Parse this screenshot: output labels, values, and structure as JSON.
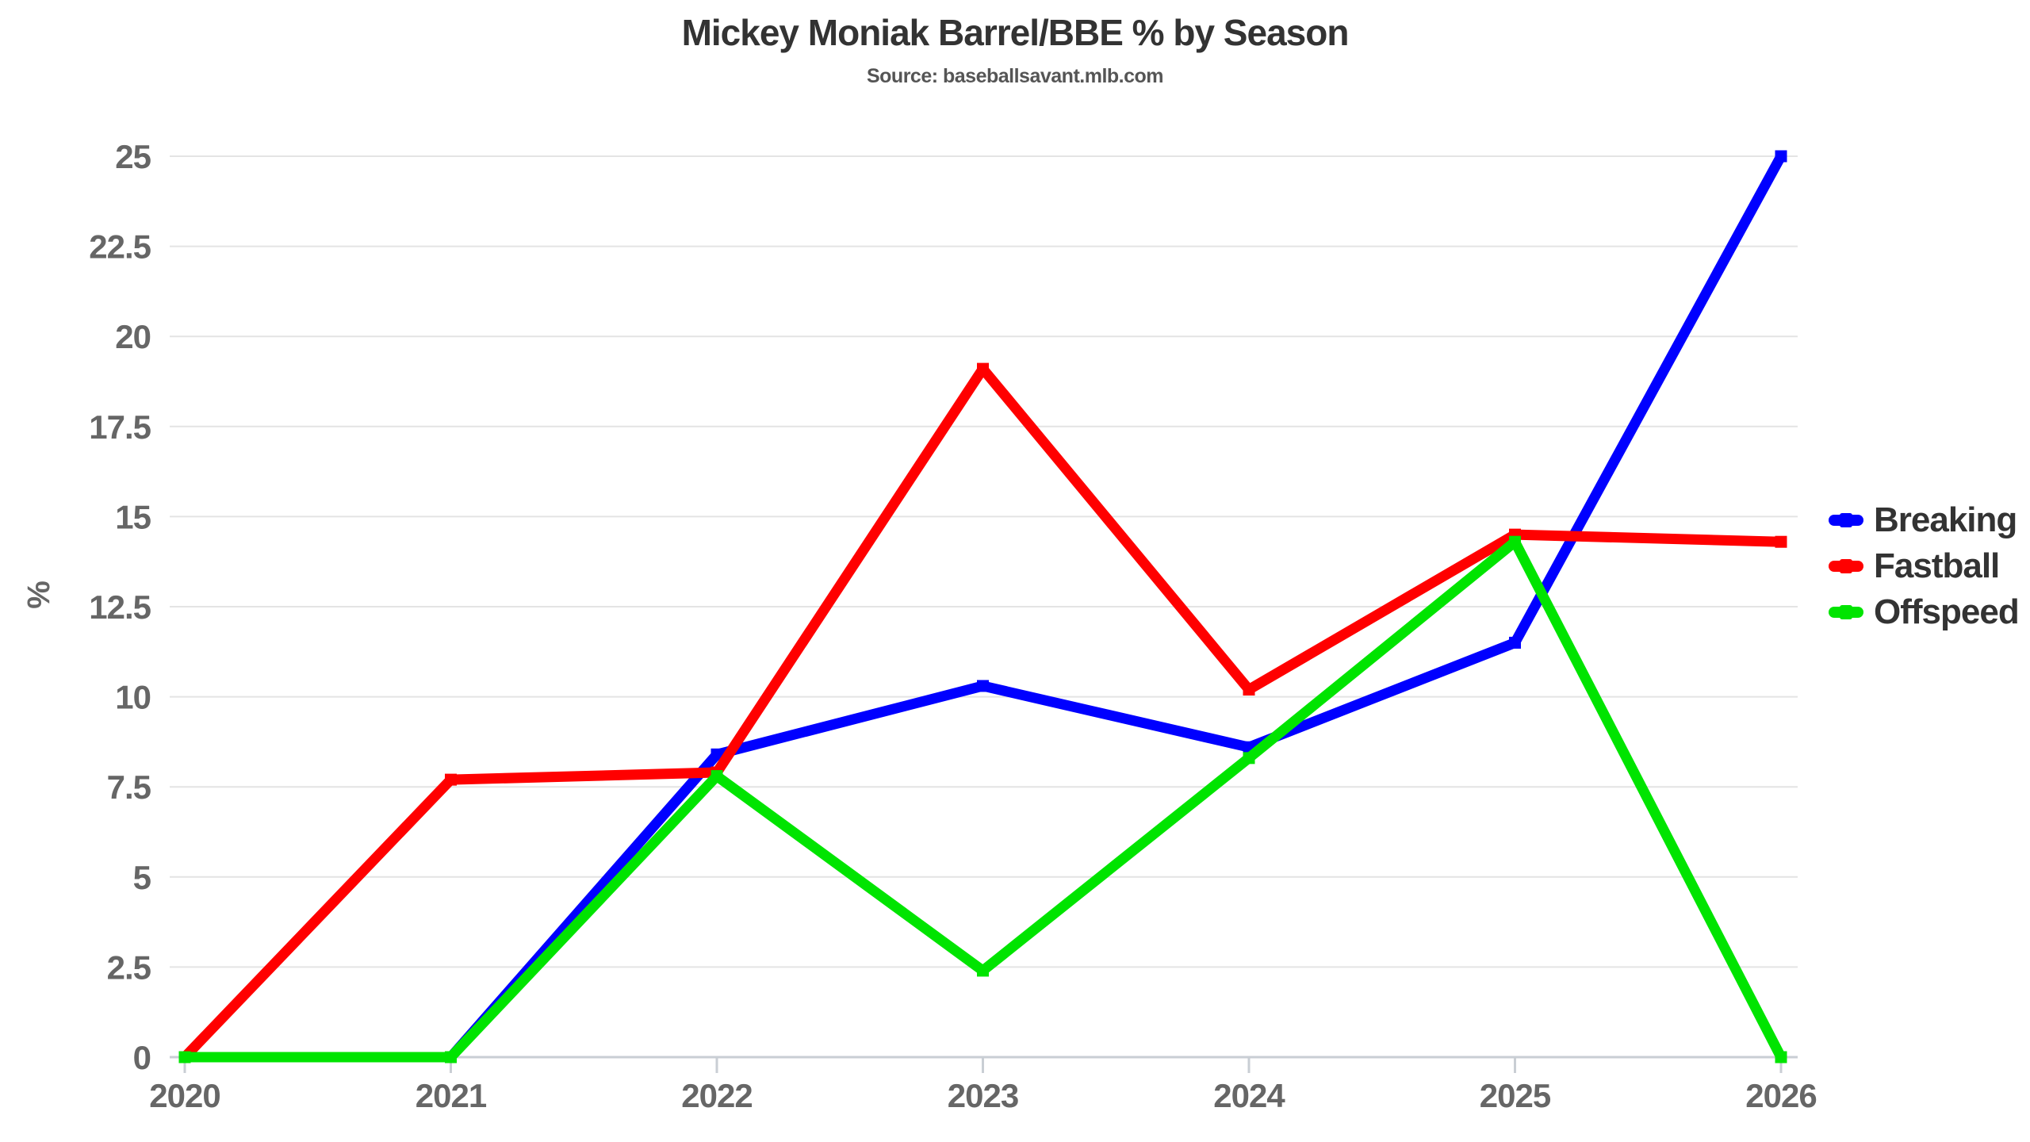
{
  "title": "Mickey Moniak Barrel/BBE % by Season",
  "subtitle": "Source: baseballsavant.mlb.com",
  "chart_data": {
    "type": "line",
    "x": [
      2020,
      2021,
      2022,
      2023,
      2024,
      2025,
      2026
    ],
    "series": [
      {
        "name": "Breaking",
        "color": "#0000ff",
        "values": [
          0,
          0,
          8.4,
          10.3,
          8.6,
          11.5,
          25
        ]
      },
      {
        "name": "Fastball",
        "color": "#ff0000",
        "values": [
          0,
          7.7,
          7.9,
          19.1,
          10.2,
          14.5,
          14.3
        ]
      },
      {
        "name": "Offspeed",
        "color": "#00e400",
        "values": [
          0,
          0,
          7.8,
          2.4,
          8.3,
          14.3,
          0
        ]
      }
    ],
    "xlabel": "",
    "ylabel": "%",
    "ylim": [
      0,
      25
    ],
    "ytick_step": 2.5,
    "grid": true,
    "legend_position": "right",
    "marker": "square"
  },
  "styles": {
    "gridline_color": "#e4e4e4",
    "axisline_color": "#c9ced4",
    "tick_label_color": "#666666",
    "title_color": "#333333",
    "subtitle_color": "#555555",
    "legend_text_color": "#333333",
    "background": "#ffffff"
  }
}
